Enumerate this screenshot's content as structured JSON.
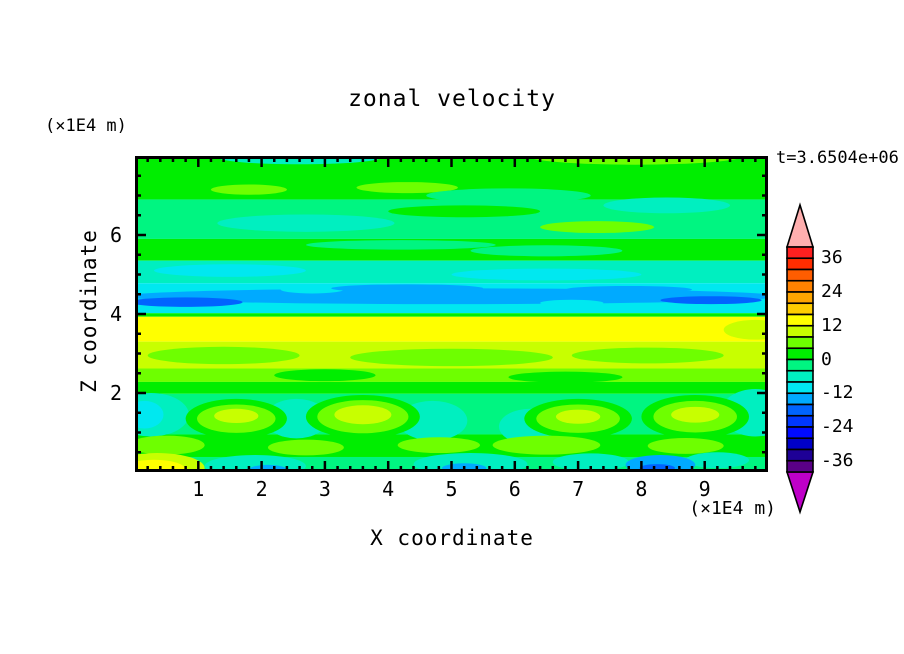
{
  "title": "zonal velocity",
  "timestamp": "t=3.6504e+06",
  "axes": {
    "x_title": "X coordinate",
    "z_title": "Z coordinate",
    "x_unit_label": "(×1E4 m)",
    "z_unit_label": "(×1E4 m)",
    "x_range": [
      0,
      10
    ],
    "z_range": [
      0,
      8
    ],
    "x_tick_labels": [
      "1",
      "2",
      "3",
      "4",
      "5",
      "6",
      "7",
      "8",
      "9"
    ],
    "x_tick_values": [
      1,
      2,
      3,
      4,
      5,
      6,
      7,
      8,
      9
    ],
    "x_minor_step": 0.2,
    "z_tick_labels": [
      "2",
      "4",
      "6"
    ],
    "z_tick_values": [
      2,
      4,
      6
    ],
    "z_minor_step": 0.5
  },
  "colorbar": {
    "labels": [
      "36",
      "24",
      "12",
      "0",
      "-12",
      "-24",
      "-36"
    ],
    "labeled_levels": [
      36,
      24,
      12,
      0,
      -12,
      -24,
      -36
    ],
    "level_min": -40,
    "level_max": 40,
    "level_step": 4,
    "band_colors_top_to_bottom": [
      "#FF2020",
      "#FF2D00",
      "#FF5D00",
      "#FF8200",
      "#FFA500",
      "#FFCD00",
      "#FFFF00",
      "#C8FF00",
      "#6EFF00",
      "#00EE00",
      "#00F581",
      "#00EFC0",
      "#00E8F0",
      "#00AAFF",
      "#0064FF",
      "#0037FF",
      "#000AFF",
      "#0000C8",
      "#1E0096",
      "#5A0087"
    ],
    "over_arrow_color": "#FFAFAF",
    "under_arrow_color": "#BE00C8"
  },
  "chart_data": {
    "type": "filled_contour",
    "title": "zonal velocity",
    "xlabel": "X coordinate (×1E4 m)",
    "ylabel": "Z coordinate (×1E4 m)",
    "time_annotation": "t=3.6504e+06",
    "x_range": [
      0,
      10
    ],
    "z_range": [
      0,
      8
    ],
    "contour_interval": 4,
    "value_min": -40,
    "value_max": 40,
    "zones": [
      {
        "z0": 6.9,
        "z1": 8.0,
        "v": 2
      },
      {
        "z0": 5.9,
        "z1": 6.9,
        "v": -2
      },
      {
        "z0": 5.35,
        "z1": 5.9,
        "v": 2
      },
      {
        "z0": 4.78,
        "z1": 5.35,
        "v": -6
      },
      {
        "z0": 4.02,
        "z1": 4.78,
        "v": -10
      },
      {
        "z0": 3.93,
        "z1": 4.02,
        "v": 2
      },
      {
        "z0": 3.3,
        "z1": 3.93,
        "v": 14
      },
      {
        "z0": 2.62,
        "z1": 3.3,
        "v": 10
      },
      {
        "z0": 2.28,
        "z1": 2.62,
        "v": 6
      },
      {
        "z0": 1.98,
        "z1": 2.28,
        "v": 2
      },
      {
        "z0": 0.95,
        "z1": 1.98,
        "v": -2
      },
      {
        "z0": 0.38,
        "z1": 0.95,
        "v": 2
      },
      {
        "z0": 0.0,
        "z1": 0.38,
        "v": -2
      }
    ],
    "patches": [
      {
        "x": 2.6,
        "z": 7.97,
        "rx": 1.3,
        "rz": 0.18,
        "v": -6
      },
      {
        "x": 7.9,
        "z": 8.0,
        "rx": 1.7,
        "rz": 0.22,
        "v": 6
      },
      {
        "x": 1.8,
        "z": 7.15,
        "rx": 0.6,
        "rz": 0.13,
        "v": 6
      },
      {
        "x": 4.3,
        "z": 7.2,
        "rx": 0.8,
        "rz": 0.14,
        "v": 6
      },
      {
        "x": 5.9,
        "z": 7.0,
        "rx": 1.3,
        "rz": 0.18,
        "v": -2
      },
      {
        "x": 8.4,
        "z": 6.75,
        "rx": 1.0,
        "rz": 0.2,
        "v": -6
      },
      {
        "x": 2.2,
        "z": 6.75,
        "rx": 1.6,
        "rz": 0.14,
        "v": -2
      },
      {
        "x": 2.7,
        "z": 6.3,
        "rx": 1.4,
        "rz": 0.22,
        "v": -6
      },
      {
        "x": 7.3,
        "z": 6.2,
        "rx": 0.9,
        "rz": 0.15,
        "v": 6
      },
      {
        "x": 5.2,
        "z": 6.6,
        "rx": 1.2,
        "rz": 0.15,
        "v": 2
      },
      {
        "x": 6.5,
        "z": 5.6,
        "rx": 1.2,
        "rz": 0.14,
        "v": -2
      },
      {
        "x": 4.2,
        "z": 5.75,
        "rx": 1.5,
        "rz": 0.12,
        "v": -2
      },
      {
        "x": 1.5,
        "z": 5.1,
        "rx": 1.2,
        "rz": 0.16,
        "v": -10
      },
      {
        "x": 6.5,
        "z": 5.0,
        "rx": 1.5,
        "rz": 0.15,
        "v": -10
      },
      {
        "x": 5.0,
        "z": 4.45,
        "rx": 5.2,
        "rz": 0.2,
        "v": -14
      },
      {
        "x": 0.8,
        "z": 4.3,
        "rx": 0.9,
        "rz": 0.12,
        "v": -18
      },
      {
        "x": 9.1,
        "z": 4.35,
        "rx": 0.8,
        "rz": 0.1,
        "v": -18
      },
      {
        "x": 2.8,
        "z": 4.62,
        "rx": 0.5,
        "rz": 0.1,
        "v": -10
      },
      {
        "x": 6.9,
        "z": 4.28,
        "rx": 0.5,
        "rz": 0.08,
        "v": -10
      },
      {
        "x": 4.3,
        "z": 4.65,
        "rx": 1.2,
        "rz": 0.1,
        "v": -14
      },
      {
        "x": 7.8,
        "z": 4.62,
        "rx": 1.0,
        "rz": 0.09,
        "v": -14
      },
      {
        "x": 9.8,
        "z": 3.6,
        "rx": 0.5,
        "rz": 0.25,
        "v": 10
      },
      {
        "x": 1.4,
        "z": 2.95,
        "rx": 1.2,
        "rz": 0.22,
        "v": 6
      },
      {
        "x": 5.0,
        "z": 2.9,
        "rx": 1.6,
        "rz": 0.22,
        "v": 6
      },
      {
        "x": 8.1,
        "z": 2.95,
        "rx": 1.2,
        "rz": 0.2,
        "v": 6
      },
      {
        "x": 3.0,
        "z": 2.45,
        "rx": 0.8,
        "rz": 0.15,
        "v": 2
      },
      {
        "x": 6.8,
        "z": 2.4,
        "rx": 0.9,
        "rz": 0.14,
        "v": 2
      },
      {
        "x": 0.25,
        "z": 1.45,
        "rx": 0.6,
        "rz": 0.55,
        "v": -6
      },
      {
        "x": 2.55,
        "z": 1.35,
        "rx": 0.5,
        "rz": 0.5,
        "v": -6
      },
      {
        "x": 4.7,
        "z": 1.3,
        "rx": 0.55,
        "rz": 0.5,
        "v": -6
      },
      {
        "x": 6.25,
        "z": 1.15,
        "rx": 0.5,
        "rz": 0.45,
        "v": -6
      },
      {
        "x": 9.8,
        "z": 1.5,
        "rx": 0.55,
        "rz": 0.6,
        "v": -6
      },
      {
        "x": 0.15,
        "z": 1.45,
        "rx": 0.3,
        "rz": 0.35,
        "v": -10
      },
      {
        "x": 1.6,
        "z": 1.35,
        "rx": 0.8,
        "rz": 0.5,
        "v": 2
      },
      {
        "x": 3.6,
        "z": 1.4,
        "rx": 0.9,
        "rz": 0.55,
        "v": 2
      },
      {
        "x": 7.0,
        "z": 1.35,
        "rx": 0.85,
        "rz": 0.5,
        "v": 2
      },
      {
        "x": 8.85,
        "z": 1.4,
        "rx": 0.85,
        "rz": 0.55,
        "v": 2
      },
      {
        "x": 1.6,
        "z": 1.35,
        "rx": 0.62,
        "rz": 0.36,
        "v": 6
      },
      {
        "x": 3.6,
        "z": 1.4,
        "rx": 0.72,
        "rz": 0.42,
        "v": 6
      },
      {
        "x": 7.0,
        "z": 1.35,
        "rx": 0.66,
        "rz": 0.36,
        "v": 6
      },
      {
        "x": 8.85,
        "z": 1.4,
        "rx": 0.66,
        "rz": 0.4,
        "v": 6
      },
      {
        "x": 1.6,
        "z": 1.42,
        "rx": 0.35,
        "rz": 0.18,
        "v": 10
      },
      {
        "x": 3.6,
        "z": 1.45,
        "rx": 0.45,
        "rz": 0.24,
        "v": 10
      },
      {
        "x": 7.0,
        "z": 1.4,
        "rx": 0.35,
        "rz": 0.18,
        "v": 10
      },
      {
        "x": 8.85,
        "z": 1.45,
        "rx": 0.38,
        "rz": 0.2,
        "v": 10
      },
      {
        "x": 0.5,
        "z": 0.68,
        "rx": 0.6,
        "rz": 0.24,
        "v": 6
      },
      {
        "x": 2.7,
        "z": 0.62,
        "rx": 0.6,
        "rz": 0.2,
        "v": 6
      },
      {
        "x": 4.8,
        "z": 0.68,
        "rx": 0.65,
        "rz": 0.2,
        "v": 6
      },
      {
        "x": 6.5,
        "z": 0.68,
        "rx": 0.85,
        "rz": 0.24,
        "v": 6
      },
      {
        "x": 8.7,
        "z": 0.66,
        "rx": 0.6,
        "rz": 0.2,
        "v": 6
      },
      {
        "x": 0.35,
        "z": 0.1,
        "rx": 0.75,
        "rz": 0.38,
        "v": 10
      },
      {
        "x": 0.3,
        "z": 0.06,
        "rx": 0.5,
        "rz": 0.25,
        "v": 14
      },
      {
        "x": 1.9,
        "z": 0.15,
        "rx": 0.8,
        "rz": 0.28,
        "v": -6
      },
      {
        "x": 5.3,
        "z": 0.2,
        "rx": 0.9,
        "rz": 0.28,
        "v": -6
      },
      {
        "x": 7.2,
        "z": 0.25,
        "rx": 0.6,
        "rz": 0.22,
        "v": -6
      },
      {
        "x": 9.2,
        "z": 0.3,
        "rx": 0.5,
        "rz": 0.2,
        "v": -6
      },
      {
        "x": 2.1,
        "z": 0.06,
        "rx": 0.3,
        "rz": 0.12,
        "v": -14
      },
      {
        "x": 5.2,
        "z": 0.1,
        "rx": 0.35,
        "rz": 0.12,
        "v": -14
      },
      {
        "x": 8.3,
        "z": 0.18,
        "rx": 0.55,
        "rz": 0.25,
        "v": -14
      },
      {
        "x": 8.25,
        "z": 0.1,
        "rx": 0.28,
        "rz": 0.1,
        "v": -18
      }
    ]
  }
}
